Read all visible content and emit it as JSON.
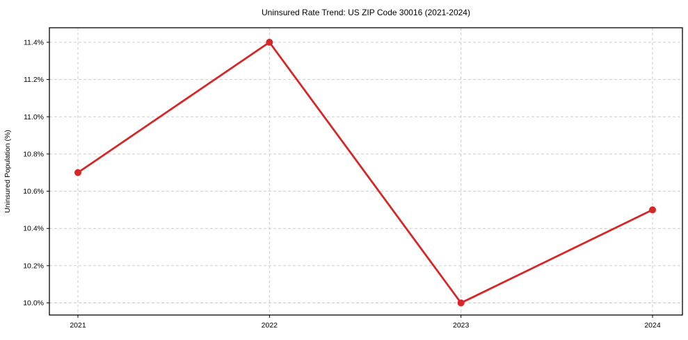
{
  "title": "Uninsured Rate Trend: US ZIP Code 30016 (2021-2024)",
  "chart_data": {
    "type": "line",
    "title": "Uninsured Rate Trend: US ZIP Code 30016 (2021-2024)",
    "categories": [
      "2021",
      "2022",
      "2023",
      "2024"
    ],
    "values": [
      10.7,
      11.4,
      10.0,
      10.5
    ],
    "xlabel": "",
    "ylabel": "Uninsured Population (%)",
    "ylim": [
      9.935,
      11.478
    ],
    "yticks": [
      10.0,
      10.2,
      10.4,
      10.6,
      10.8,
      11.0,
      11.2,
      11.4
    ],
    "ytick_labels": [
      "10.0%",
      "10.2%",
      "10.4%",
      "10.6%",
      "10.8%",
      "11.0%",
      "11.2%",
      "11.4%"
    ],
    "grid": true,
    "legend": false,
    "colors": {
      "line": "#d62728",
      "marker": "#d62728",
      "grid": "#cccccc",
      "spine": "#000000",
      "background": "#ffffff",
      "text": "#000000"
    }
  }
}
